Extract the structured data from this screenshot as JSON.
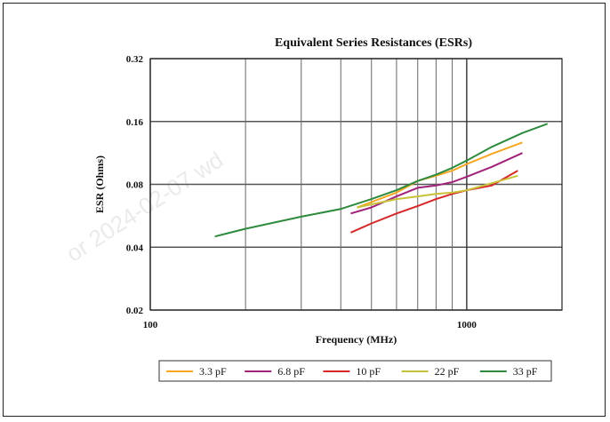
{
  "chart_data": {
    "type": "line",
    "title": "Equivalent Series Resistances (ESRs)",
    "xlabel": "Frequency (MHz)",
    "ylabel": "ESR (Ohms)",
    "x_scale": "log",
    "y_scale": "log",
    "xlim": [
      100,
      2000
    ],
    "ylim": [
      0.02,
      0.32
    ],
    "x_tick_labels": [
      "100",
      "1000"
    ],
    "y_tick_labels": [
      "0.02",
      "0.04",
      "0.08",
      "0.16",
      "0.32"
    ],
    "y_ticks": [
      0.02,
      0.04,
      0.08,
      0.16,
      0.32
    ],
    "x_major_ticks": [
      100,
      1000
    ],
    "x_grid": [
      200,
      300,
      400,
      500,
      600,
      700,
      800,
      900
    ],
    "grid": true,
    "legend_position": "bottom",
    "series": [
      {
        "name": "3.3 pF",
        "color": "#f5a623",
        "x": [
          450,
          600,
          700,
          800,
          900,
          1000,
          1200,
          1500
        ],
        "y": [
          0.062,
          0.073,
          0.083,
          0.088,
          0.093,
          0.1,
          0.112,
          0.127
        ]
      },
      {
        "name": "6.8 pF",
        "color": "#a0227a",
        "x": [
          430,
          500,
          600,
          700,
          800,
          900,
          1000,
          1200,
          1500
        ],
        "y": [
          0.058,
          0.062,
          0.07,
          0.077,
          0.079,
          0.082,
          0.087,
          0.097,
          0.113
        ]
      },
      {
        "name": "10 pF",
        "color": "#d62828",
        "x": [
          430,
          500,
          600,
          700,
          800,
          900,
          1000,
          1200,
          1450
        ],
        "y": [
          0.047,
          0.052,
          0.058,
          0.063,
          0.068,
          0.072,
          0.075,
          0.079,
          0.093
        ]
      },
      {
        "name": "22 pF",
        "color": "#c8c23a",
        "x": [
          450,
          600,
          700,
          800,
          900,
          1000,
          1200,
          1450
        ],
        "y": [
          0.062,
          0.068,
          0.07,
          0.072,
          0.073,
          0.075,
          0.081,
          0.088
        ]
      },
      {
        "name": "33 pF",
        "color": "#2e8b3e",
        "x": [
          160,
          200,
          300,
          400,
          500,
          600,
          700,
          800,
          900,
          1000,
          1200,
          1500,
          1800
        ],
        "y": [
          0.045,
          0.049,
          0.056,
          0.061,
          0.068,
          0.075,
          0.083,
          0.089,
          0.096,
          0.104,
          0.121,
          0.141,
          0.156
        ]
      }
    ]
  },
  "watermark_text": "or 2024-02-07 wd"
}
